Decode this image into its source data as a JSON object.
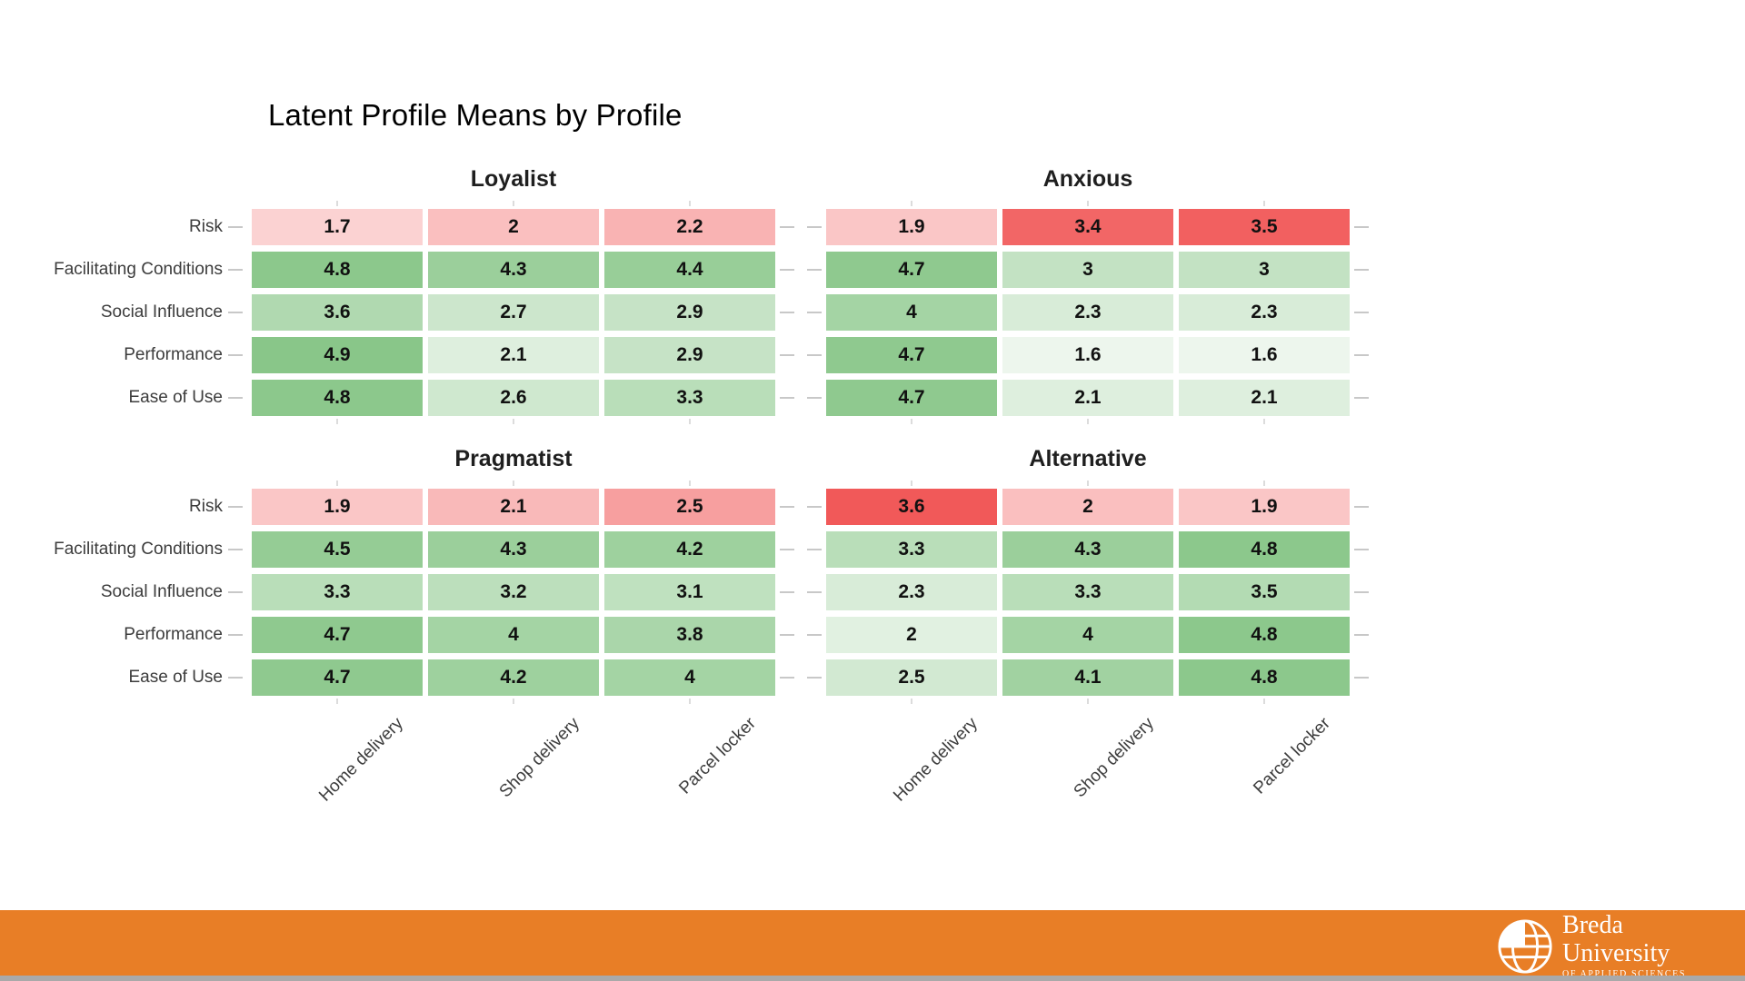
{
  "chart_data": {
    "type": "heatmap",
    "title": "Latent Profile Means by Profile",
    "facets": [
      "Loyalist",
      "Anxious",
      "Pragmatist",
      "Alternative"
    ],
    "rows": [
      "Risk",
      "Facilitating Conditions",
      "Social Influence",
      "Performance",
      "Ease of Use"
    ],
    "columns": [
      "Home delivery",
      "Shop delivery",
      "Parcel locker"
    ],
    "value_range": [
      1,
      5
    ],
    "series": [
      {
        "name": "Loyalist",
        "values": [
          [
            1.7,
            2,
            2.2
          ],
          [
            4.8,
            4.3,
            4.4
          ],
          [
            3.6,
            2.7,
            2.9
          ],
          [
            4.9,
            2.1,
            2.9
          ],
          [
            4.8,
            2.6,
            3.3
          ]
        ]
      },
      {
        "name": "Anxious",
        "values": [
          [
            1.9,
            3.4,
            3.5
          ],
          [
            4.7,
            3,
            3
          ],
          [
            4,
            2.3,
            2.3
          ],
          [
            4.7,
            1.6,
            1.6
          ],
          [
            4.7,
            2.1,
            2.1
          ]
        ]
      },
      {
        "name": "Pragmatist",
        "values": [
          [
            1.9,
            2.1,
            2.5
          ],
          [
            4.5,
            4.3,
            4.2
          ],
          [
            3.3,
            3.2,
            3.1
          ],
          [
            4.7,
            4,
            3.8
          ],
          [
            4.7,
            4.2,
            4
          ]
        ]
      },
      {
        "name": "Alternative",
        "values": [
          [
            3.6,
            2,
            1.9
          ],
          [
            3.3,
            4.3,
            4.8
          ],
          [
            2.3,
            3.3,
            3.5
          ],
          [
            2,
            4,
            4.8
          ],
          [
            2.5,
            4.1,
            4.8
          ]
        ]
      }
    ],
    "row_color_scales": [
      "red",
      "green",
      "green",
      "green",
      "green"
    ],
    "colors": {
      "red_high": "#ea0000",
      "green_high": "#86c586",
      "low": "#ffffff"
    },
    "legend_position": "none",
    "grid": false
  },
  "footer": {
    "background": "#e87e26",
    "logo": {
      "line1": "Breda",
      "line2": "University",
      "line3": "OF APPLIED SCIENCES"
    }
  }
}
